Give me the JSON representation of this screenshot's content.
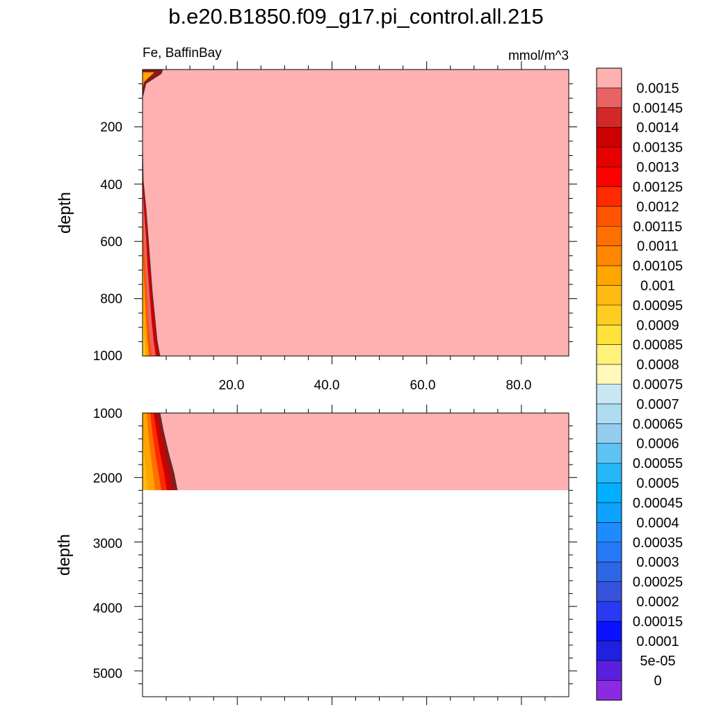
{
  "chart_data": [
    {
      "type": "heatmap",
      "panel": "upper",
      "title": "b.e20.B1850.f09_g17.pi_control.all.215",
      "left_string": "Fe, BaffinBay",
      "right_string": "mmol/m^3",
      "ylabel": "depth",
      "xlabel": "",
      "xlim": [
        0,
        90
      ],
      "ylim": [
        1000,
        0
      ],
      "xticks": [
        "20.0",
        "40.0",
        "60.0",
        "80.0"
      ],
      "yticks": [
        "200",
        "400",
        "600",
        "800",
        "1000"
      ],
      "dominant_value": 0.0015,
      "note_values": [
        {
          "depth": 0,
          "edge_x": 4.5
        },
        {
          "depth": 300,
          "edge_x": 0.5
        },
        {
          "depth": 1000,
          "edge_x": 3.8
        }
      ]
    },
    {
      "type": "heatmap",
      "panel": "lower",
      "ylabel": "depth",
      "xlim": [
        0,
        90
      ],
      "ylim": [
        5400,
        1000
      ],
      "yticks": [
        "1000",
        "2000",
        "3000",
        "4000",
        "5000"
      ],
      "data_bottom_depth": 2200,
      "dominant_value": 0.0015
    }
  ],
  "colorbar": {
    "labels": [
      "0.0015",
      "0.00145",
      "0.0014",
      "0.00135",
      "0.0013",
      "0.00125",
      "0.0012",
      "0.00115",
      "0.0011",
      "0.00105",
      "0.001",
      "0.00095",
      "0.0009",
      "0.00085",
      "0.0008",
      "0.00075",
      "0.0007",
      "0.00065",
      "0.0006",
      "0.00055",
      "0.0005",
      "0.00045",
      "0.0004",
      "0.00035",
      "0.0003",
      "0.00025",
      "0.0002",
      "0.00015",
      "0.0001",
      "5e-05",
      "0"
    ],
    "colors": [
      "#ffb0b0",
      "#e86464",
      "#d42828",
      "#cc0000",
      "#e60000",
      "#ff0000",
      "#ff2a00",
      "#ff5500",
      "#ff7000",
      "#ff8800",
      "#ffa500",
      "#ffbb11",
      "#ffcc22",
      "#ffe23a",
      "#fff17a",
      "#fff8b8",
      "#c8e6f4",
      "#aedcf0",
      "#92cdee",
      "#5ec2f4",
      "#26b8f6",
      "#00b0ff",
      "#0ea2ff",
      "#1e8cff",
      "#2778f4",
      "#2f66e6",
      "#3752dc",
      "#2a3af0",
      "#0c12ff",
      "#2020e0",
      "#5a20e0",
      "#8a2be2"
    ]
  }
}
